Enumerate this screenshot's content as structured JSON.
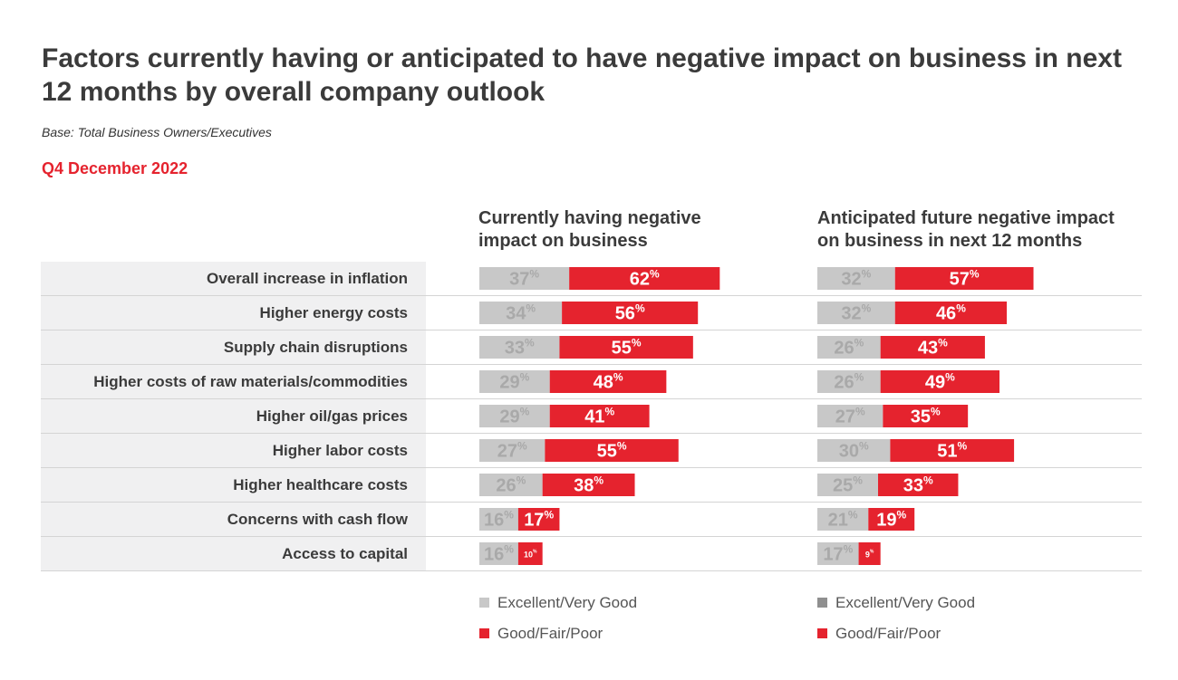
{
  "header": {
    "title": "Factors currently having or anticipated to have negative impact on business in next 12 months by overall company outlook",
    "subtitle": "Base: Total Business Owners/Executives",
    "period": "Q4 December 2022"
  },
  "columns": {
    "left": {
      "line1": "Currently having negative",
      "line2": "impact on business"
    },
    "right": {
      "line1": "Anticipated future negative impact",
      "line2": "on business in next 12 months"
    }
  },
  "legend": {
    "left": [
      {
        "label": "Excellent/Very Good",
        "color": "#c8c8c8"
      },
      {
        "label": "Good/Fair/Poor",
        "color": "#e5232e"
      }
    ],
    "right": [
      {
        "label": "Excellent/Very Good",
        "color": "#8f8f8f"
      },
      {
        "label": "Good/Fair/Poor",
        "color": "#e5232e"
      }
    ]
  },
  "colors": {
    "accent_red": "#e5232e",
    "bar_grey": "#c8c8c8",
    "row_band": "#f0f0f1"
  },
  "unit_suffix": "%",
  "chart_data": [
    {
      "type": "bar",
      "orientation": "horizontal",
      "stacked": true,
      "title": "Currently having negative impact on business",
      "categories": [
        "Overall increase in inflation",
        "Higher energy costs",
        "Supply chain disruptions",
        "Higher costs of raw materials/commodities",
        "Higher oil/gas prices",
        "Higher labor costs",
        "Higher healthcare costs",
        "Concerns with cash flow",
        "Access to capital"
      ],
      "series": [
        {
          "name": "Excellent/Very Good",
          "values": [
            37,
            34,
            33,
            29,
            29,
            27,
            26,
            16,
            16
          ]
        },
        {
          "name": "Good/Fair/Poor",
          "values": [
            62,
            56,
            55,
            48,
            41,
            55,
            38,
            17,
            10
          ]
        }
      ]
    },
    {
      "type": "bar",
      "orientation": "horizontal",
      "stacked": true,
      "title": "Anticipated future negative impact on business in next 12 months",
      "categories": [
        "Overall increase in inflation",
        "Higher energy costs",
        "Supply chain disruptions",
        "Higher costs of raw materials/commodities",
        "Higher oil/gas prices",
        "Higher labor costs",
        "Higher healthcare costs",
        "Concerns with cash flow",
        "Access to capital"
      ],
      "series": [
        {
          "name": "Excellent/Very Good",
          "values": [
            32,
            32,
            26,
            26,
            27,
            30,
            25,
            21,
            17
          ]
        },
        {
          "name": "Good/Fair/Poor",
          "values": [
            57,
            46,
            43,
            49,
            35,
            51,
            33,
            19,
            9
          ]
        }
      ]
    }
  ]
}
